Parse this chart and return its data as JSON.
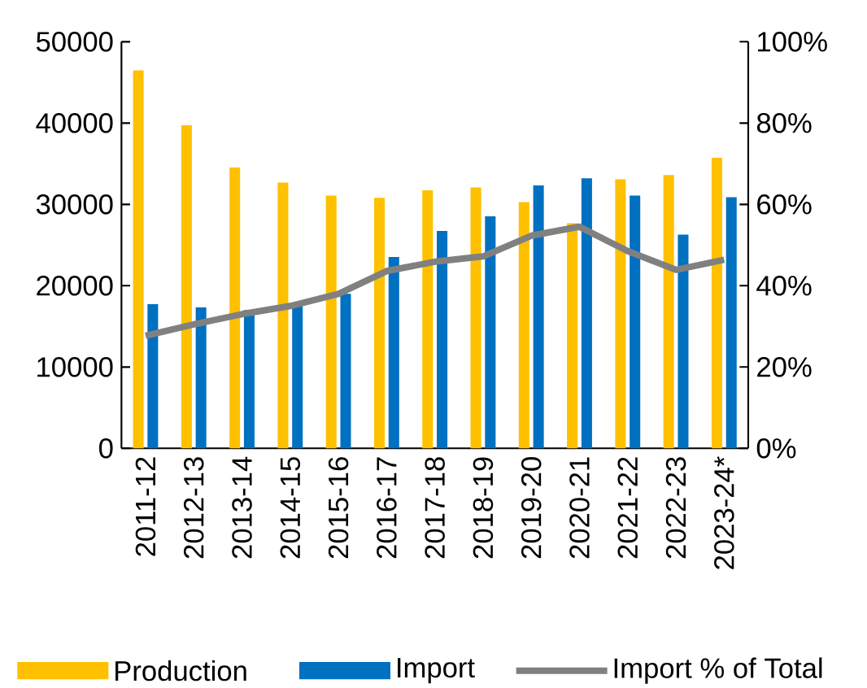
{
  "chart_data": {
    "type": "bar",
    "categories": [
      "2011-12",
      "2012-13",
      "2013-14",
      "2014-15",
      "2015-16",
      "2016-17",
      "2017-18",
      "2018-19",
      "2019-20",
      "2020-21",
      "2021-22",
      "2022-23",
      "2023-24*"
    ],
    "series": [
      {
        "name": "Production",
        "color": "#ffc000",
        "values": [
          46470,
          39730,
          34530,
          32670,
          31070,
          30800,
          31730,
          32070,
          30270,
          27670,
          33070,
          33600,
          35730
        ]
      },
      {
        "name": "Import",
        "color": "#0070c0",
        "values": [
          17730,
          17330,
          17000,
          17500,
          19000,
          23530,
          26730,
          28530,
          32330,
          33200,
          31070,
          26270,
          30870
        ]
      },
      {
        "name": "Import % of Total",
        "type": "line",
        "axis": "y2",
        "color": "#808080",
        "values": [
          27.7,
          30.5,
          33,
          35,
          38,
          43.6,
          45.9,
          47.2,
          52.3,
          54.5,
          48.5,
          43.9,
          46.4
        ]
      }
    ],
    "ylim": [
      0,
      50000
    ],
    "yticks": [
      0,
      10000,
      20000,
      30000,
      40000,
      50000
    ],
    "y2lim": [
      0,
      100
    ],
    "y2ticks": [
      {
        "value": 0,
        "label": "0%"
      },
      {
        "value": 20,
        "label": "20%"
      },
      {
        "value": 40,
        "label": "40%"
      },
      {
        "value": 60,
        "label": "60%"
      },
      {
        "value": 80,
        "label": "80%"
      },
      {
        "value": 100,
        "label": "100%"
      }
    ],
    "legend": "bottom",
    "grid": false,
    "marker": "none"
  }
}
